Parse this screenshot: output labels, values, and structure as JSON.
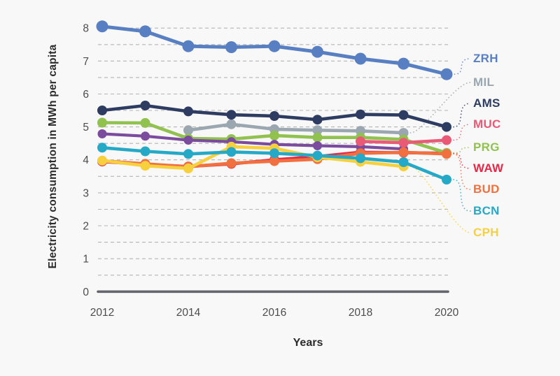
{
  "page": {
    "background_color": "#f8f8f8"
  },
  "chart_data": {
    "type": "line",
    "title": "",
    "xlabel": "Years",
    "ylabel": "Electricity consumption in MWh per capita",
    "years": [
      2012,
      2013,
      2014,
      2015,
      2016,
      2017,
      2018,
      2019,
      2020
    ],
    "x_tick_labels": [
      "2012",
      "2014",
      "2016",
      "2018",
      "2020"
    ],
    "y_ticks": [
      0,
      1,
      2,
      3,
      4,
      5,
      6,
      7,
      8
    ],
    "ylim": [
      0,
      8.5
    ],
    "grid": "horizontal dashed lines every 0.5",
    "legend_position": "right",
    "axis_color": "#63676b",
    "grid_color": "#adadad",
    "tick_text_color": "#4c4c4c",
    "series": [
      {
        "label": "ZRH",
        "color": "#587fc2",
        "start_year": 2012,
        "values": [
          8.05,
          7.9,
          7.45,
          7.42,
          7.45,
          7.28,
          7.07,
          6.92,
          6.6
        ]
      },
      {
        "label": "MIL",
        "color": "#9aa6b0",
        "start_year": 2014,
        "values": [
          4.9,
          5.08,
          4.93,
          4.9,
          4.88,
          4.82
        ]
      },
      {
        "label": "AMS",
        "color": "#2d3c60",
        "start_year": 2012,
        "values": [
          5.5,
          5.65,
          5.47,
          5.37,
          5.33,
          5.22,
          5.38,
          5.36,
          5.0
        ]
      },
      {
        "label": "MUC",
        "color": "#e85a76",
        "start_year": 2018,
        "values": [
          4.56,
          4.52,
          4.6
        ]
      },
      {
        "label": "PRG",
        "color": "#91c14e",
        "start_year": 2012,
        "values": [
          5.13,
          5.12,
          4.65,
          4.63,
          4.74,
          4.68,
          4.68,
          4.62,
          4.21
        ]
      },
      {
        "label": "WAW",
        "color": "#e42a48",
        "start_year": 2012,
        "values": [
          3.95,
          3.86,
          3.8,
          3.88,
          4.0,
          4.1,
          4.23,
          4.22,
          4.2
        ]
      },
      {
        "label": "BUD",
        "color": "#f0703f",
        "start_year": 2012,
        "values": [
          3.97,
          3.88,
          3.79,
          3.9,
          3.96,
          4.02,
          4.2,
          4.23,
          4.18
        ]
      },
      {
        "label": "BCN",
        "color": "#26a9c6",
        "start_year": 2012,
        "values": [
          4.37,
          4.26,
          4.18,
          4.24,
          4.2,
          4.13,
          4.05,
          3.93,
          3.4
        ]
      },
      {
        "label": "CPH",
        "color": "#f7d03e",
        "start_year": 2012,
        "values": [
          3.98,
          3.82,
          3.74,
          4.4,
          4.35,
          4.08,
          3.94,
          3.8
        ]
      },
      {
        "label": "",
        "color": "#7b4b9e",
        "start_year": 2012,
        "in_legend": false,
        "values": [
          4.79,
          4.72,
          4.6,
          4.55,
          4.47,
          4.43,
          4.4,
          4.33
        ]
      }
    ]
  }
}
